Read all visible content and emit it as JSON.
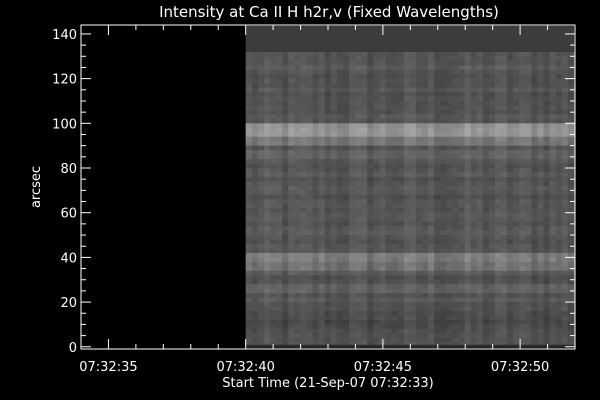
{
  "chart_data": {
    "type": "heatmap",
    "title": "Intensity at Ca II H h2r,v (Fixed Wavelengths)",
    "xlabel": "Start Time (21-Sep-07 07:32:33)",
    "ylabel": "arcsec",
    "x_ticks": [
      "07:32:35",
      "07:32:40",
      "07:32:45",
      "07:32:50"
    ],
    "x_tick_seconds": [
      2,
      7,
      12,
      17
    ],
    "xlim_seconds": [
      1.0,
      19.0
    ],
    "y_ticks": [
      0,
      20,
      40,
      60,
      80,
      100,
      120,
      140
    ],
    "ylim": [
      -1,
      144
    ],
    "data_start_seconds": 7.0,
    "data_ymax": 132,
    "background_band_color": "#3c3c3c",
    "colormap": "grayscale",
    "grid": false,
    "bright_rows": [
      {
        "y": 96,
        "level": 0.62
      },
      {
        "y": 98,
        "level": 0.6
      },
      {
        "y": 92,
        "level": 0.5
      },
      {
        "y": 86,
        "level": 0.42
      },
      {
        "y": 40,
        "level": 0.52
      },
      {
        "y": 36,
        "level": 0.48
      },
      {
        "y": 26,
        "level": 0.42
      },
      {
        "y": 110,
        "level": 0.28
      }
    ]
  }
}
